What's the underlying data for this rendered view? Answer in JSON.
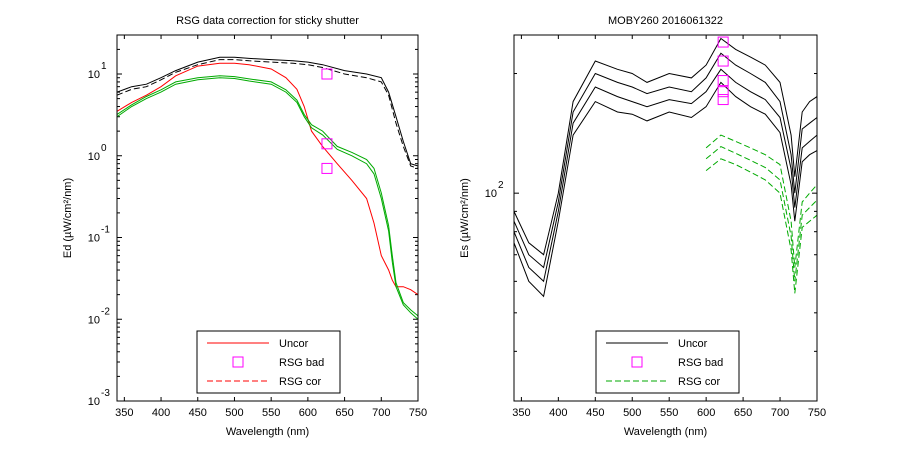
{
  "chart_data": [
    {
      "type": "line",
      "title": "RSG data correction for sticky shutter",
      "xlabel": "Wavelength (nm)",
      "ylabel": "Ed (µW/cm²/nm)",
      "yscale": "log",
      "xlim": [
        340,
        750
      ],
      "ylim": [
        0.001,
        30
      ],
      "x_ticks": [
        350,
        400,
        450,
        500,
        550,
        600,
        650,
        700,
        750
      ],
      "y_ticks": [
        {
          "value": 10,
          "base": "10",
          "exp": "1"
        },
        {
          "value": 1,
          "base": "10",
          "exp": "0"
        },
        {
          "value": 0.1,
          "base": "10",
          "exp": "-1"
        },
        {
          "value": 0.01,
          "base": "10",
          "exp": "-2"
        },
        {
          "value": 0.001,
          "base": "10",
          "exp": "-3"
        }
      ],
      "legend": {
        "position": "bottom-center",
        "entries": [
          {
            "label": "Uncor",
            "color": "#ff0000",
            "style": "solid"
          },
          {
            "label": "RSG bad",
            "color": "#ff00ff",
            "style": "square"
          },
          {
            "label": "RSG cor",
            "color": "#ff0000",
            "style": "dashed"
          }
        ]
      },
      "series": [
        {
          "name": "Uncor",
          "color": "#000000",
          "style": "solid",
          "x": [
            340,
            360,
            380,
            400,
            420,
            450,
            480,
            500,
            520,
            550,
            580,
            600,
            620,
            650,
            680,
            700,
            710,
            720,
            730,
            740,
            750
          ],
          "y": [
            6,
            7,
            7.5,
            9,
            11,
            14,
            16,
            16,
            15.5,
            15,
            14.5,
            14,
            13,
            11,
            10,
            9,
            6,
            3,
            1.5,
            0.8,
            0.75
          ]
        },
        {
          "name": "RSG cor",
          "color": "#000000",
          "style": "dashed",
          "x": [
            340,
            360,
            380,
            400,
            420,
            450,
            480,
            500,
            520,
            550,
            580,
            600,
            620,
            650,
            680,
            700,
            710,
            720,
            730,
            740,
            750
          ],
          "y": [
            5.5,
            6.5,
            7,
            8.5,
            10.5,
            13,
            15,
            15,
            14.5,
            14,
            13.5,
            13,
            12,
            10,
            9,
            8,
            5.5,
            2.5,
            1.3,
            0.75,
            0.7
          ]
        },
        {
          "name": "Uncor",
          "color": "#ff0000",
          "style": "solid",
          "x": [
            340,
            360,
            380,
            400,
            420,
            450,
            480,
            500,
            520,
            550,
            570,
            585,
            595,
            605,
            620,
            640,
            660,
            680,
            690,
            700,
            710,
            715,
            720,
            730,
            740,
            750
          ],
          "y": [
            3.5,
            4.5,
            5.5,
            7,
            9.5,
            12.5,
            13.5,
            13.5,
            13,
            11.5,
            9,
            6.5,
            4,
            2,
            1.3,
            0.8,
            0.5,
            0.3,
            0.15,
            0.06,
            0.04,
            0.03,
            0.025,
            0.025,
            0.023,
            0.02
          ]
        },
        {
          "name": "RSG cor",
          "color": "#00aa00",
          "style": "solid",
          "x": [
            340,
            360,
            380,
            400,
            420,
            450,
            480,
            500,
            520,
            550,
            570,
            585,
            595,
            605,
            620,
            640,
            660,
            680,
            690,
            700,
            710,
            715,
            720,
            730,
            740,
            750
          ],
          "y": [
            3,
            4,
            5,
            6,
            7.5,
            8.5,
            9,
            8.8,
            8.2,
            7.5,
            6,
            4.5,
            3,
            2.2,
            1.8,
            1.2,
            1,
            0.8,
            0.6,
            0.3,
            0.12,
            0.05,
            0.025,
            0.015,
            0.012,
            0.01
          ]
        },
        {
          "name": "RSG cor",
          "color": "#00aa00",
          "style": "solid",
          "x": [
            340,
            360,
            380,
            400,
            420,
            450,
            480,
            500,
            520,
            550,
            570,
            585,
            595,
            605,
            620,
            640,
            660,
            680,
            690,
            700,
            710,
            715,
            720,
            730,
            740,
            750
          ],
          "y": [
            3.2,
            4.2,
            5.3,
            6.4,
            8,
            9,
            9.5,
            9.3,
            8.7,
            8,
            6.4,
            4.8,
            3.2,
            2.4,
            2,
            1.3,
            1.1,
            0.9,
            0.7,
            0.35,
            0.14,
            0.06,
            0.028,
            0.016,
            0.013,
            0.011
          ]
        }
      ],
      "markers": [
        {
          "label": "RSG bad",
          "x": 626,
          "y": 10,
          "color": "#ff00ff"
        },
        {
          "label": "RSG bad",
          "x": 626,
          "y": 1.4,
          "color": "#ff00ff"
        },
        {
          "label": "RSG bad",
          "x": 626,
          "y": 0.7,
          "color": "#ff00ff"
        }
      ]
    },
    {
      "type": "line",
      "title": "MOBY260  2016061322",
      "xlabel": "Wavelength (nm)",
      "ylabel": "Es (µW/cm²/nm)",
      "yscale": "log",
      "xlim": [
        340,
        750
      ],
      "ylim": [
        30,
        250
      ],
      "x_ticks": [
        350,
        400,
        450,
        500,
        550,
        600,
        650,
        700,
        750
      ],
      "y_ticks": [
        {
          "value": 100,
          "base": "10",
          "exp": "2"
        }
      ],
      "legend": {
        "position": "bottom-center",
        "entries": [
          {
            "label": "Uncor",
            "color": "#000000",
            "style": "solid"
          },
          {
            "label": "RSG bad",
            "color": "#ff00ff",
            "style": "square"
          },
          {
            "label": "RSG cor",
            "color": "#00aa00",
            "style": "dashed"
          }
        ]
      },
      "series": [
        {
          "name": "Uncor",
          "color": "#000000",
          "style": "solid",
          "x": [
            340,
            360,
            380,
            400,
            420,
            450,
            480,
            500,
            520,
            550,
            580,
            600,
            620,
            640,
            660,
            680,
            700,
            715,
            720,
            730,
            740,
            750
          ],
          "y": [
            90,
            75,
            70,
            100,
            170,
            215,
            205,
            200,
            190,
            200,
            195,
            210,
            245,
            230,
            220,
            210,
            190,
            140,
            110,
            160,
            170,
            175
          ]
        },
        {
          "name": "Uncor",
          "color": "#000000",
          "style": "solid",
          "x": [
            340,
            360,
            380,
            400,
            420,
            450,
            480,
            500,
            520,
            550,
            580,
            600,
            620,
            640,
            660,
            680,
            700,
            715,
            720,
            730,
            740,
            750
          ],
          "y": [
            85,
            70,
            65,
            95,
            160,
            200,
            190,
            185,
            178,
            185,
            180,
            195,
            225,
            210,
            200,
            190,
            170,
            125,
            100,
            145,
            150,
            155
          ]
        },
        {
          "name": "Uncor",
          "color": "#000000",
          "style": "solid",
          "x": [
            340,
            360,
            380,
            400,
            420,
            450,
            480,
            500,
            520,
            550,
            580,
            600,
            620,
            640,
            660,
            680,
            700,
            715,
            720,
            730,
            740,
            750
          ],
          "y": [
            80,
            65,
            60,
            90,
            150,
            185,
            175,
            170,
            165,
            172,
            168,
            180,
            205,
            190,
            180,
            172,
            155,
            115,
            92,
            130,
            135,
            140
          ]
        },
        {
          "name": "Uncor",
          "color": "#000000",
          "style": "solid",
          "x": [
            340,
            360,
            380,
            400,
            420,
            450,
            480,
            500,
            520,
            550,
            580,
            600,
            620,
            640,
            660,
            680,
            700,
            715,
            720,
            730,
            740,
            750
          ],
          "y": [
            75,
            60,
            55,
            85,
            140,
            170,
            160,
            158,
            152,
            160,
            155,
            165,
            190,
            175,
            165,
            158,
            142,
            105,
            85,
            120,
            125,
            128
          ]
        },
        {
          "name": "RSG cor",
          "color": "#00aa00",
          "style": "dashed",
          "x": [
            600,
            620,
            640,
            660,
            680,
            700,
            715,
            720,
            730,
            740,
            750
          ],
          "y": [
            130,
            140,
            135,
            130,
            125,
            118,
            85,
            65,
            95,
            100,
            105
          ]
        },
        {
          "name": "RSG cor",
          "color": "#00aa00",
          "style": "dashed",
          "x": [
            600,
            620,
            640,
            660,
            680,
            700,
            715,
            720,
            730,
            740,
            750
          ],
          "y": [
            122,
            131,
            126,
            121,
            116,
            108,
            78,
            60,
            88,
            92,
            96
          ]
        },
        {
          "name": "RSG cor",
          "color": "#00aa00",
          "style": "dashed",
          "x": [
            600,
            620,
            640,
            660,
            680,
            700,
            715,
            720,
            730,
            740,
            750
          ],
          "y": [
            114,
            122,
            118,
            113,
            108,
            100,
            72,
            56,
            82,
            85,
            88
          ]
        }
      ],
      "markers": [
        {
          "label": "RSG bad",
          "x": 623,
          "y": 240,
          "color": "#ff00ff"
        },
        {
          "label": "RSG bad",
          "x": 623,
          "y": 215,
          "color": "#ff00ff"
        },
        {
          "label": "RSG bad",
          "x": 623,
          "y": 192,
          "color": "#ff00ff"
        },
        {
          "label": "RSG bad",
          "x": 623,
          "y": 180,
          "color": "#ff00ff"
        },
        {
          "label": "RSG bad",
          "x": 623,
          "y": 172,
          "color": "#ff00ff"
        }
      ]
    }
  ]
}
